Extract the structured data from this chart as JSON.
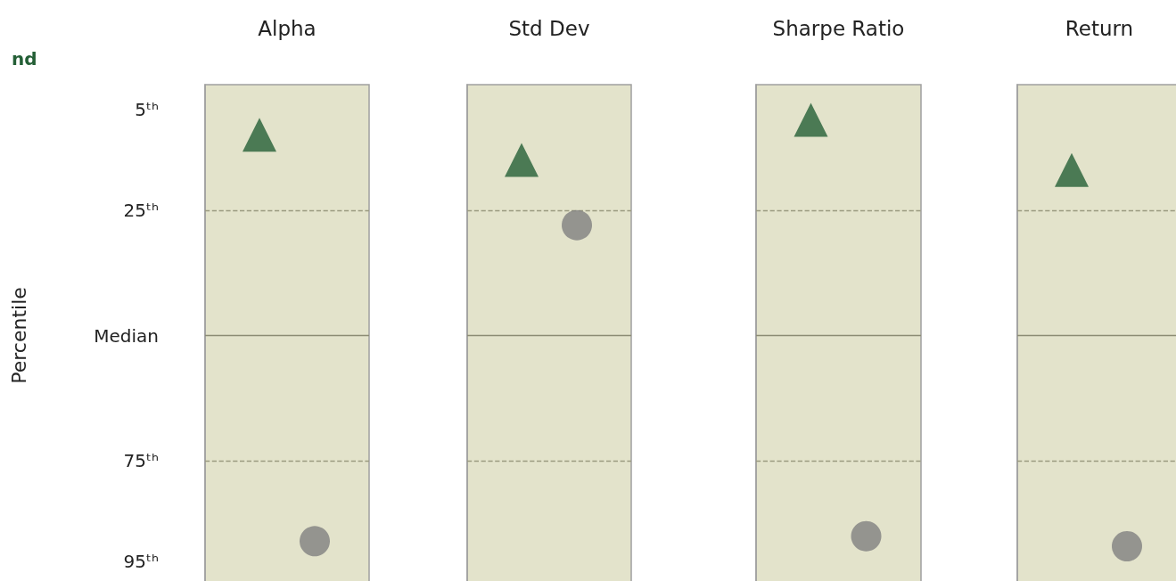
{
  "chart_data": {
    "type": "scatter",
    "categories": [
      "Alpha",
      "Std Dev",
      "Sharpe Ratio",
      "Return"
    ],
    "ylabel": "Percentile",
    "ylim": [
      100,
      0
    ],
    "yticks": [
      {
        "value": 5,
        "label": "5ᵗʰ"
      },
      {
        "value": 25,
        "label": "25ᵗʰ"
      },
      {
        "value": 50,
        "label": "Median"
      },
      {
        "value": 75,
        "label": "75ᵗʰ"
      },
      {
        "value": 95,
        "label": "95ᵗʰ"
      }
    ],
    "legend": "top left",
    "bands": [
      {
        "axis": "x",
        "from": "Alpha",
        "to": "Alpha",
        "color": "#e3e3cb"
      },
      {
        "axis": "x",
        "from": "Std Dev",
        "to": "Std Dev",
        "color": "#e3e3cb"
      },
      {
        "axis": "x",
        "from": "Sharpe Ratio",
        "to": "Sharpe Ratio",
        "color": "#e3e3cb"
      },
      {
        "axis": "x",
        "from": "Return",
        "to": "Return",
        "color": "#e3e3cb"
      }
    ],
    "ref_lines": [
      {
        "axis": "y",
        "value": 25,
        "line_style": "dashed",
        "color": "#9a9a80"
      },
      {
        "axis": "y",
        "value": 50,
        "line_style": "solid",
        "color": "#8c8c74"
      },
      {
        "axis": "y",
        "value": 75,
        "line_style": "dashed",
        "color": "#9a9a80"
      }
    ],
    "series": [
      {
        "name": "nd",
        "color": "#245f36",
        "marker": "triangle",
        "values": [
          10,
          15,
          7,
          17
        ]
      },
      {
        "color": "#808080",
        "marker": "circle",
        "values": [
          91,
          28,
          90,
          92
        ]
      }
    ]
  }
}
